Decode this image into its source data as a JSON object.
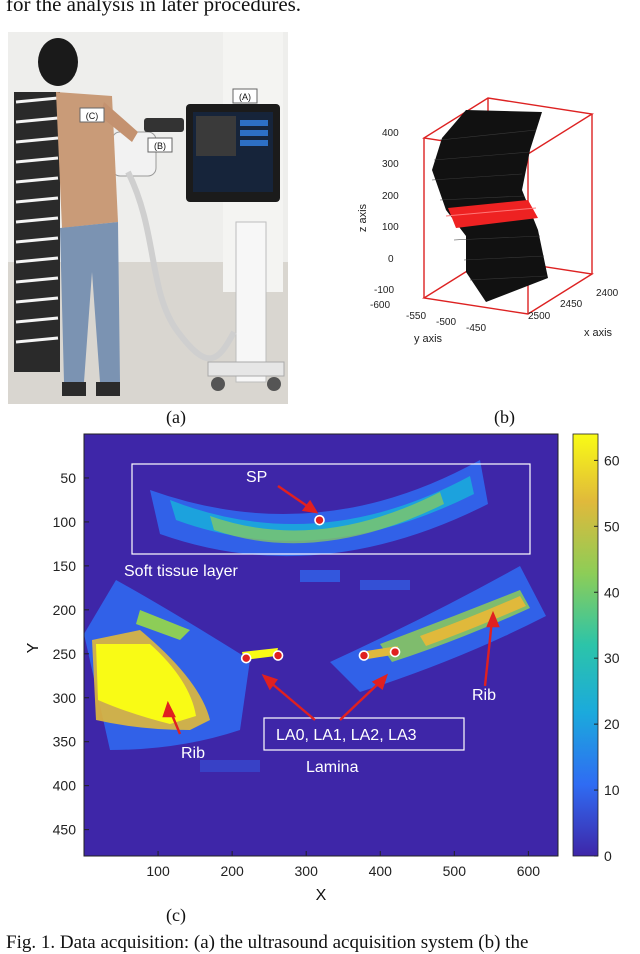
{
  "top_text": "for the analysis in later procedures.",
  "caption_text": "Fig. 1. Data acquisition: (a) the ultrasound acquisition system (b) the",
  "panel_labels": {
    "a": "(a)",
    "b": "(b)",
    "c": "(c)"
  },
  "photo": {
    "callouts": {
      "a": "(A)",
      "b": "(B)",
      "c": "(C)"
    }
  },
  "plot3d": {
    "zlabel": "z axis",
    "ylabel": "y axis",
    "xlabel": "x axis",
    "z_ticks": [
      "400",
      "300",
      "200",
      "100",
      "0",
      "-100"
    ],
    "y_ticks": [
      "-600",
      "-550",
      "-500",
      "-450"
    ],
    "x_ticks": [
      "2400",
      "2450",
      "2500"
    ],
    "colors": {
      "volume": "#111111",
      "box": "#dd2222",
      "band": "#ee2222"
    }
  },
  "chart_data": {
    "type": "heatmap",
    "xlabel": "X",
    "ylabel": "Y",
    "x_ticks": [
      100,
      200,
      300,
      400,
      500,
      600
    ],
    "y_ticks": [
      50,
      100,
      150,
      200,
      250,
      300,
      350,
      400,
      450
    ],
    "xlim": [
      0,
      640
    ],
    "ylim": [
      0,
      480
    ],
    "colorbar_ticks": [
      0,
      10,
      20,
      30,
      40,
      50,
      60
    ],
    "colorbar_range": [
      0,
      64
    ],
    "colormap": [
      "#3e26a8",
      "#2f6cf3",
      "#1baadc",
      "#2cc4a9",
      "#8dcd57",
      "#e0b93b",
      "#f9fb15"
    ],
    "annotations": {
      "sp": "SP",
      "soft_tissue": "Soft tissue layer",
      "rib_left": "Rib",
      "rib_right": "Rib",
      "la_box": "LA0, LA1, LA2, LA3",
      "lamina": "Lamina"
    },
    "points": [
      {
        "name": "SP",
        "x": 318,
        "y": 98
      },
      {
        "name": "LA0",
        "x": 219,
        "y": 255
      },
      {
        "name": "LA1",
        "x": 262,
        "y": 252
      },
      {
        "name": "LA2",
        "x": 378,
        "y": 252
      },
      {
        "name": "LA3",
        "x": 420,
        "y": 248
      }
    ]
  }
}
